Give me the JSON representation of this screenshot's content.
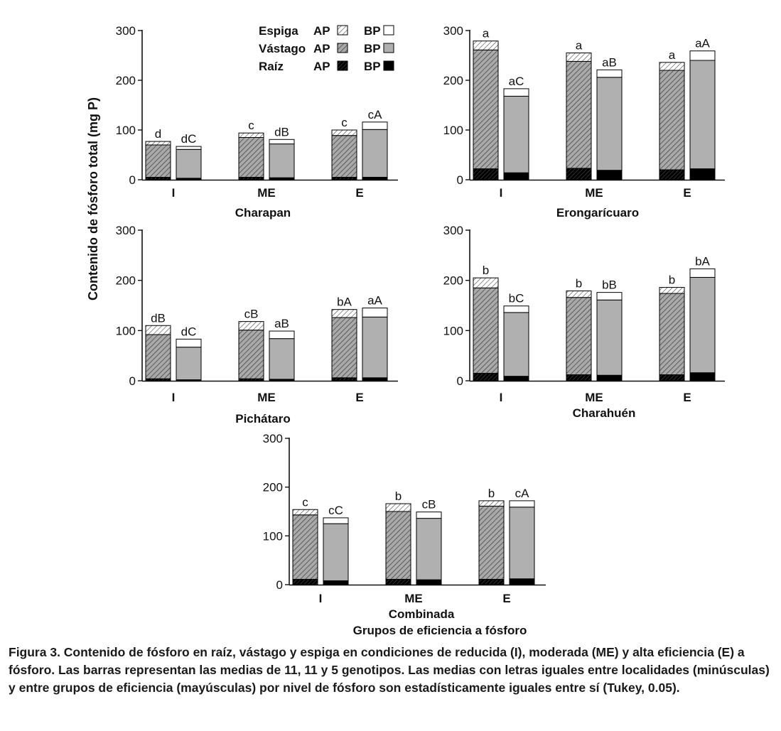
{
  "figure": {
    "y_axis_label": "Contenido de fósforo total (mg P)",
    "x_axis_label": "Grupos de eficiencia a fósforo",
    "caption": "Figura 3. Contenido de fósforo en raíz, vástago y espiga en condiciones de reducida (I), moderada (ME) y alta eficiencia (E) a fósforo. Las barras representan las medias de 11, 11 y 5 genotipos. Las medias con letras iguales entre localidades (minúsculas) y entre grupos de eficiencia (mayúsculas) por nivel de fósforo son estadísticamente iguales entre sí (Tukey, 0.05)."
  },
  "legend": {
    "rows": [
      {
        "label": "Espiga",
        "ap": "AP",
        "bp": "BP"
      },
      {
        "label": "Vástago",
        "ap": "AP",
        "bp": "BP"
      },
      {
        "label": "Raíz",
        "ap": "AP",
        "bp": "BP"
      }
    ]
  },
  "colors": {
    "axis": "#111111",
    "stem_bp": "#b0b0b0",
    "root_bp": "#000000",
    "spike_bp": "#ffffff",
    "stem_ap_fill": "#a9a9a9",
    "root_ap_fill": "#1a1a1a",
    "spike_ap_fill": "#ffffff"
  },
  "chart_data": [
    {
      "type": "bar",
      "stacked": true,
      "title": "Charapan",
      "categories": [
        "I",
        "ME",
        "E"
      ],
      "ylim": [
        0,
        300
      ],
      "yticks": [
        0,
        100,
        200,
        300
      ],
      "stack_order": [
        "Raíz",
        "Vástago",
        "Espiga"
      ],
      "series": [
        {
          "name": "AP",
          "root": [
            5,
            5,
            5
          ],
          "stem": [
            65,
            80,
            84
          ],
          "spike": [
            7,
            9,
            11
          ],
          "letters": [
            "d",
            "c",
            "c"
          ]
        },
        {
          "name": "BP",
          "root": [
            3,
            4,
            5
          ],
          "stem": [
            58,
            68,
            96
          ],
          "spike": [
            6,
            9,
            15
          ],
          "letters": [
            "dC",
            "dB",
            "cA"
          ]
        }
      ]
    },
    {
      "type": "bar",
      "stacked": true,
      "title": "Erongarícuaro",
      "categories": [
        "I",
        "ME",
        "E"
      ],
      "ylim": [
        0,
        300
      ],
      "yticks": [
        0,
        100,
        200,
        300
      ],
      "stack_order": [
        "Raíz",
        "Vástago",
        "Espiga"
      ],
      "series": [
        {
          "name": "AP",
          "root": [
            22,
            23,
            20
          ],
          "stem": [
            239,
            215,
            200
          ],
          "spike": [
            18,
            17,
            16
          ],
          "letters": [
            "a",
            "a",
            "a"
          ]
        },
        {
          "name": "BP",
          "root": [
            14,
            19,
            22
          ],
          "stem": [
            154,
            187,
            218
          ],
          "spike": [
            15,
            15,
            19
          ],
          "letters": [
            "aC",
            "aB",
            "aA"
          ]
        }
      ]
    },
    {
      "type": "bar",
      "stacked": true,
      "title": "Pichátaro",
      "categories": [
        "I",
        "ME",
        "E"
      ],
      "ylim": [
        0,
        300
      ],
      "yticks": [
        0,
        100,
        200,
        300
      ],
      "stack_order": [
        "Raíz",
        "Vástago",
        "Espiga"
      ],
      "series": [
        {
          "name": "AP",
          "root": [
            4,
            4,
            6
          ],
          "stem": [
            88,
            97,
            120
          ],
          "spike": [
            18,
            17,
            16
          ],
          "letters": [
            "dB",
            "cB",
            "bA"
          ]
        },
        {
          "name": "BP",
          "root": [
            2,
            3,
            6
          ],
          "stem": [
            65,
            81,
            121
          ],
          "spike": [
            16,
            15,
            18
          ],
          "letters": [
            "dC",
            "aB",
            "aA"
          ]
        }
      ]
    },
    {
      "type": "bar",
      "stacked": true,
      "title": "Charahuén",
      "categories": [
        "I",
        "ME",
        "E"
      ],
      "ylim": [
        0,
        300
      ],
      "yticks": [
        0,
        100,
        200,
        300
      ],
      "stack_order": [
        "Raíz",
        "Vástago",
        "Espiga"
      ],
      "series": [
        {
          "name": "AP",
          "root": [
            15,
            12,
            12
          ],
          "stem": [
            170,
            154,
            162
          ],
          "spike": [
            20,
            13,
            12
          ],
          "letters": [
            "b",
            "b",
            "b"
          ]
        },
        {
          "name": "BP",
          "root": [
            9,
            11,
            16
          ],
          "stem": [
            127,
            150,
            190
          ],
          "spike": [
            13,
            15,
            17
          ],
          "letters": [
            "bC",
            "bB",
            "bA"
          ]
        }
      ]
    },
    {
      "type": "bar",
      "stacked": true,
      "title": "Combinada",
      "categories": [
        "I",
        "ME",
        "E"
      ],
      "ylim": [
        0,
        300
      ],
      "yticks": [
        0,
        100,
        200,
        300
      ],
      "stack_order": [
        "Raíz",
        "Vástago",
        "Espiga"
      ],
      "series": [
        {
          "name": "AP",
          "root": [
            11,
            11,
            11
          ],
          "stem": [
            132,
            139,
            150
          ],
          "spike": [
            11,
            16,
            11
          ],
          "letters": [
            "c",
            "b",
            "b"
          ]
        },
        {
          "name": "BP",
          "root": [
            8,
            10,
            12
          ],
          "stem": [
            117,
            126,
            147
          ],
          "spike": [
            12,
            13,
            13
          ],
          "letters": [
            "cC",
            "cB",
            "cA"
          ]
        }
      ]
    }
  ]
}
